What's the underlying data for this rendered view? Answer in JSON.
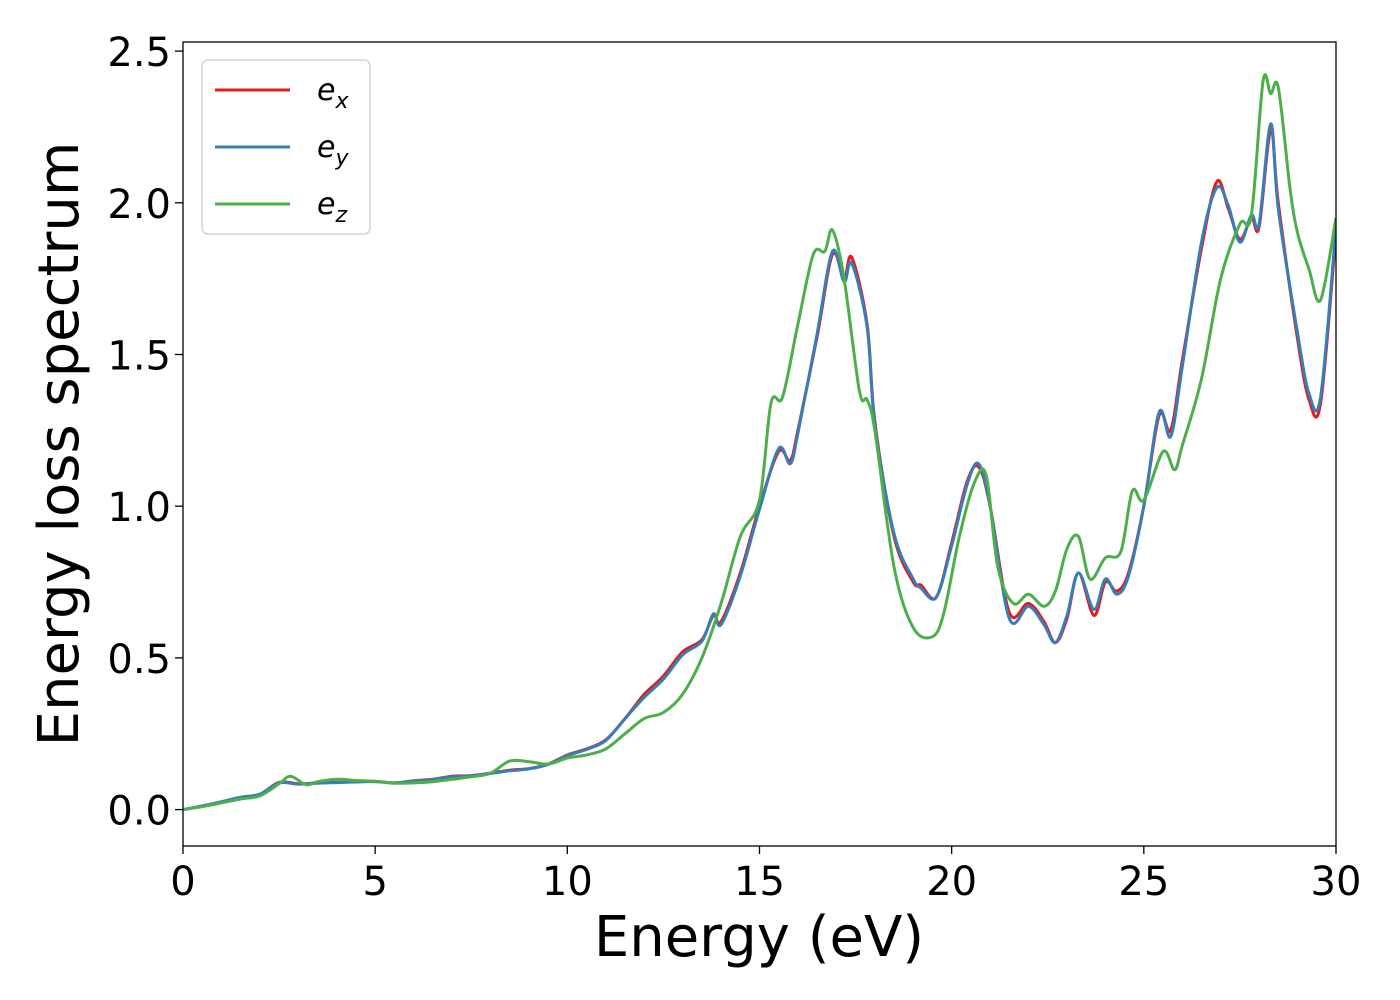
{
  "chart_data": {
    "type": "line",
    "title": "",
    "xlabel": "Energy (eV)",
    "ylabel": "Energy loss spectrum",
    "xlim": [
      0,
      30
    ],
    "ylim": [
      -0.12,
      2.53
    ],
    "xticks": [
      0,
      5,
      10,
      15,
      20,
      25,
      30
    ],
    "yticks": [
      0.0,
      0.5,
      1.0,
      1.5,
      2.0,
      2.5
    ],
    "xtick_labels": [
      "0",
      "5",
      "10",
      "15",
      "20",
      "25",
      "30"
    ],
    "ytick_labels": [
      "0.0",
      "0.5",
      "1.0",
      "1.5",
      "2.0",
      "2.5"
    ],
    "grid": false,
    "legend_position": "top-left",
    "series": [
      {
        "name": "e_x",
        "label_symbol": "e",
        "label_sub": "x",
        "color": "#e41a1c",
        "x": [
          0,
          0.5,
          1.0,
          1.5,
          2.0,
          2.5,
          3.0,
          3.5,
          4.0,
          4.5,
          5.0,
          5.5,
          6.0,
          6.5,
          7.0,
          7.5,
          8.0,
          8.5,
          9.0,
          9.5,
          10.0,
          10.5,
          11.0,
          11.5,
          12.0,
          12.5,
          13.0,
          13.5,
          13.8,
          14.0,
          14.5,
          15.0,
          15.5,
          15.8,
          16.0,
          16.5,
          16.9,
          17.2,
          17.4,
          17.8,
          18.0,
          18.5,
          19.0,
          19.2,
          19.6,
          20.0,
          20.4,
          20.7,
          21.0,
          21.5,
          22.0,
          22.4,
          22.7,
          23.0,
          23.3,
          23.7,
          24.0,
          24.3,
          24.6,
          25.0,
          25.4,
          25.7,
          26.0,
          26.5,
          26.9,
          27.2,
          27.5,
          27.8,
          28.0,
          28.3,
          28.5,
          29.0,
          29.3,
          29.6,
          30.0
        ],
        "y": [
          0.0,
          0.012,
          0.025,
          0.04,
          0.05,
          0.09,
          0.085,
          0.088,
          0.09,
          0.092,
          0.093,
          0.088,
          0.095,
          0.1,
          0.11,
          0.112,
          0.12,
          0.13,
          0.135,
          0.15,
          0.18,
          0.2,
          0.23,
          0.3,
          0.38,
          0.44,
          0.52,
          0.56,
          0.64,
          0.62,
          0.78,
          1.0,
          1.18,
          1.15,
          1.25,
          1.56,
          1.83,
          1.75,
          1.82,
          1.6,
          1.28,
          0.9,
          0.75,
          0.74,
          0.7,
          0.88,
          1.08,
          1.13,
          1.0,
          0.65,
          0.68,
          0.62,
          0.55,
          0.63,
          0.78,
          0.64,
          0.75,
          0.72,
          0.78,
          1.0,
          1.3,
          1.25,
          1.48,
          1.85,
          2.07,
          1.98,
          1.88,
          1.95,
          1.92,
          2.24,
          2.0,
          1.55,
          1.35,
          1.34,
          1.9
        ]
      },
      {
        "name": "e_y",
        "label_symbol": "e",
        "label_sub": "y",
        "color": "#377eb8",
        "x": [
          0,
          0.5,
          1.0,
          1.5,
          2.0,
          2.5,
          3.0,
          3.5,
          4.0,
          4.5,
          5.0,
          5.5,
          6.0,
          6.5,
          7.0,
          7.5,
          8.0,
          8.5,
          9.0,
          9.5,
          10.0,
          10.5,
          11.0,
          11.5,
          12.0,
          12.5,
          13.0,
          13.5,
          13.8,
          14.0,
          14.5,
          15.0,
          15.5,
          15.8,
          16.0,
          16.5,
          16.9,
          17.2,
          17.4,
          17.8,
          18.0,
          18.5,
          19.0,
          19.2,
          19.6,
          20.0,
          20.4,
          20.7,
          21.0,
          21.5,
          22.0,
          22.4,
          22.7,
          23.0,
          23.3,
          23.7,
          24.0,
          24.3,
          24.6,
          25.0,
          25.4,
          25.7,
          26.0,
          26.5,
          26.9,
          27.2,
          27.5,
          27.8,
          28.0,
          28.3,
          28.5,
          29.0,
          29.3,
          29.6,
          30.0
        ],
        "y": [
          0.0,
          0.012,
          0.026,
          0.041,
          0.051,
          0.088,
          0.084,
          0.087,
          0.089,
          0.091,
          0.092,
          0.088,
          0.094,
          0.099,
          0.108,
          0.111,
          0.119,
          0.128,
          0.134,
          0.149,
          0.178,
          0.198,
          0.228,
          0.3,
          0.37,
          0.43,
          0.51,
          0.555,
          0.645,
          0.61,
          0.77,
          0.99,
          1.19,
          1.14,
          1.24,
          1.57,
          1.84,
          1.74,
          1.8,
          1.59,
          1.27,
          0.91,
          0.76,
          0.73,
          0.7,
          0.87,
          1.07,
          1.14,
          1.0,
          0.63,
          0.67,
          0.61,
          0.55,
          0.64,
          0.78,
          0.66,
          0.76,
          0.71,
          0.77,
          1.0,
          1.31,
          1.23,
          1.46,
          1.87,
          2.05,
          1.99,
          1.87,
          1.96,
          1.93,
          2.26,
          1.98,
          1.57,
          1.37,
          1.36,
          1.92
        ]
      },
      {
        "name": "e_z",
        "label_symbol": "e",
        "label_sub": "z",
        "color": "#4daf4a",
        "x": [
          0,
          0.5,
          1.0,
          1.5,
          2.0,
          2.5,
          2.8,
          3.2,
          3.5,
          4.0,
          4.5,
          5.0,
          5.5,
          6.0,
          6.5,
          7.0,
          7.5,
          8.0,
          8.5,
          9.0,
          9.5,
          10.0,
          10.5,
          11.0,
          11.5,
          12.0,
          12.5,
          13.0,
          13.5,
          14.0,
          14.5,
          15.0,
          15.3,
          15.6,
          16.0,
          16.4,
          16.7,
          16.9,
          17.2,
          17.6,
          17.8,
          18.0,
          18.5,
          19.0,
          19.5,
          19.8,
          20.2,
          20.6,
          20.9,
          21.2,
          21.6,
          22.0,
          22.4,
          22.7,
          23.0,
          23.3,
          23.6,
          24.0,
          24.4,
          24.7,
          25.0,
          25.5,
          25.8,
          26.0,
          26.5,
          27.0,
          27.5,
          27.8,
          28.1,
          28.3,
          28.5,
          28.8,
          29.0,
          29.3,
          29.6,
          30.0
        ],
        "y": [
          0.0,
          0.01,
          0.022,
          0.035,
          0.045,
          0.085,
          0.11,
          0.082,
          0.092,
          0.1,
          0.096,
          0.093,
          0.087,
          0.088,
          0.092,
          0.1,
          0.108,
          0.12,
          0.16,
          0.158,
          0.15,
          0.17,
          0.18,
          0.2,
          0.25,
          0.3,
          0.32,
          0.38,
          0.5,
          0.68,
          0.9,
          1.02,
          1.34,
          1.36,
          1.6,
          1.83,
          1.84,
          1.91,
          1.75,
          1.38,
          1.35,
          1.25,
          0.8,
          0.6,
          0.57,
          0.65,
          0.9,
          1.08,
          1.1,
          0.8,
          0.68,
          0.71,
          0.67,
          0.72,
          0.86,
          0.9,
          0.76,
          0.83,
          0.85,
          1.05,
          1.02,
          1.18,
          1.12,
          1.2,
          1.42,
          1.75,
          1.93,
          1.96,
          2.4,
          2.36,
          2.38,
          2.05,
          1.9,
          1.78,
          1.68,
          1.95
        ]
      }
    ]
  }
}
